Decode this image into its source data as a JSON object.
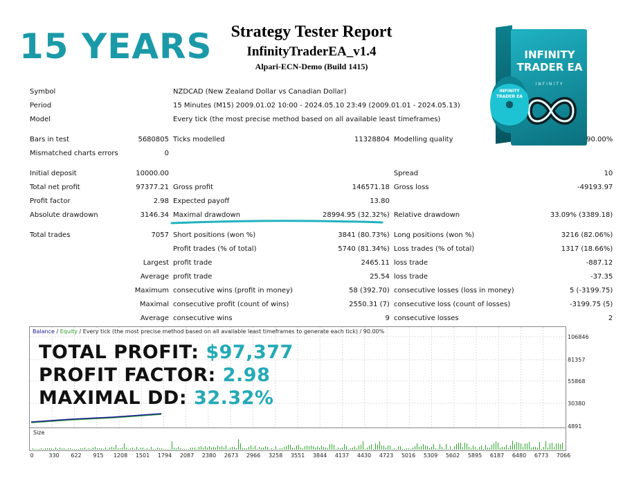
{
  "banner": "15 YEARS",
  "report": {
    "title": "Strategy Tester Report",
    "ea_name": "InfinityTraderEA_v1.4",
    "server": "Alpari-ECN-Demo (Build 1415)"
  },
  "product": {
    "box_title": "INFINITY TRADER EA",
    "box_subtitle": "INFINITY",
    "cd_title": "INFINITY TRADER EA"
  },
  "rows": [
    {
      "kind": "row",
      "c1": "Symbol",
      "c2": "",
      "c3": "NZDCAD (New Zealand Dollar vs Canadian Dollar)",
      "c4": "",
      "c5": "",
      "c6": ""
    },
    {
      "kind": "row",
      "c1": "Period",
      "c2": "",
      "c3": "15 Minutes (M15) 2009.01.02 10:00 - 2024.05.10 23:49 (2009.01.01 - 2024.05.13)",
      "c4": "",
      "c5": "",
      "c6": ""
    },
    {
      "kind": "row",
      "c1": "Model",
      "c2": "",
      "c3": "Every tick (the most precise method based on all available least timeframes)",
      "c4": "",
      "c5": "",
      "c6": ""
    },
    {
      "kind": "gap"
    },
    {
      "kind": "row",
      "c1": "Bars in test",
      "c2": "5680805",
      "c3": "Ticks modelled",
      "c4": "11328804",
      "c5": "Modelling quality",
      "c6": "90.00%"
    },
    {
      "kind": "row",
      "c1": "Mismatched charts errors",
      "c2": "0",
      "c3": "",
      "c4": "",
      "c5": "",
      "c6": ""
    },
    {
      "kind": "gap"
    },
    {
      "kind": "row",
      "c1": "Initial deposit",
      "c2": "10000.00",
      "c3": "",
      "c4": "",
      "c5": "Spread",
      "c6": "10"
    },
    {
      "kind": "row",
      "c1": "Total net profit",
      "c2": "97377.21",
      "c3": "Gross profit",
      "c4": "146571.18",
      "c5": "Gross loss",
      "c6": "-49193.97"
    },
    {
      "kind": "row",
      "c1": "Profit factor",
      "c2": "2.98",
      "c3": "Expected payoff",
      "c4": "13.80",
      "c5": "",
      "c6": ""
    },
    {
      "kind": "row",
      "c1": "Absolute drawdown",
      "c2": "3146.34",
      "c3": "Maximal drawdown",
      "c4": "28994.95 (32.32%)",
      "c5": "Relative drawdown",
      "c6": "33.09% (3389.18)"
    },
    {
      "kind": "gap"
    },
    {
      "kind": "row",
      "c1": "Total trades",
      "c2": "7057",
      "c3": "Short positions (won %)",
      "c4": "3841 (80.73%)",
      "c5": "Long positions (won %)",
      "c6": "3216 (82.06%)"
    },
    {
      "kind": "row",
      "c1": "",
      "c2": "",
      "c3": "Profit trades (% of total)",
      "c4": "5740 (81.34%)",
      "c5": "Loss trades (% of total)",
      "c6": "1317 (18.66%)"
    },
    {
      "kind": "row",
      "c1": "",
      "c2": "Largest",
      "c3": "profit trade",
      "c4": "2465.11",
      "c5": "loss trade",
      "c6": "-887.12"
    },
    {
      "kind": "row",
      "c1": "",
      "c2": "Average",
      "c3": "profit trade",
      "c4": "25.54",
      "c5": "loss trade",
      "c6": "-37.35"
    },
    {
      "kind": "row",
      "c1": "",
      "c2": "Maximum",
      "c3": "consecutive wins (profit in money)",
      "c4": "58 (392.70)",
      "c5": "consecutive losses (loss in money)",
      "c6": "5 (-3199.75)"
    },
    {
      "kind": "row",
      "c1": "",
      "c2": "Maximal",
      "c3": "consecutive profit (count of wins)",
      "c4": "2550.31 (7)",
      "c5": "consecutive loss (count of losses)",
      "c6": "-3199.75 (5)"
    },
    {
      "kind": "row",
      "c1": "",
      "c2": "Average",
      "c3": "consecutive wins",
      "c4": "9",
      "c5": "consecutive losses",
      "c6": "2"
    }
  ],
  "graph": {
    "legend_balance": "Balance",
    "legend_sep": " / ",
    "legend_equity": "Equity",
    "legend_rest": " / Every tick (the most precise method based on all available least timeframes to generate each tick) / 90.00%",
    "size_label": "Size",
    "y_labels": [
      "106846",
      "81357",
      "55868",
      "30380",
      "4891"
    ],
    "x_labels": [
      "0",
      "330",
      "622",
      "915",
      "1208",
      "1501",
      "1794",
      "2087",
      "2380",
      "2673",
      "2966",
      "3258",
      "3551",
      "3844",
      "4137",
      "4430",
      "4723",
      "5016",
      "5309",
      "5602",
      "5895",
      "6187",
      "6480",
      "6773",
      "7066"
    ],
    "balance_color": "#1a1a9a",
    "equity_color": "#2a9a2a"
  },
  "overlay": {
    "profit_label": "TOTAL PROFIT: ",
    "profit_value": "$97,377",
    "pf_label": "PROFIT FACTOR: ",
    "pf_value": "2.98",
    "dd_label": "MAXIMAL DD: ",
    "dd_value": "32.32%"
  },
  "colors": {
    "accent": "#23aab6",
    "banner": "#1a9aa8"
  }
}
